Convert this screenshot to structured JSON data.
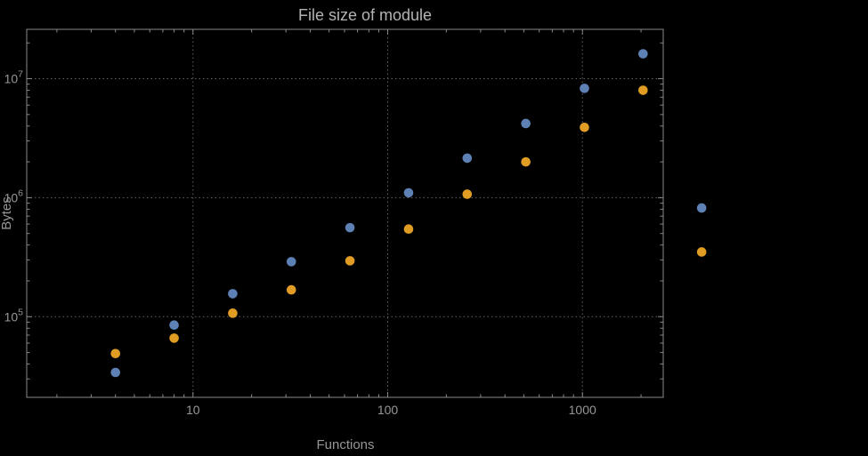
{
  "chart_data": {
    "type": "scatter",
    "title": "File size of module",
    "xlabel": "Functions",
    "ylabel": "Bytes",
    "x_scale": "log",
    "y_scale": "log",
    "grid": true,
    "legend": "none",
    "xlim": [
      1.4,
      2600
    ],
    "ylim": [
      21000,
      26000000
    ],
    "x_ticks": [
      10,
      100,
      1000
    ],
    "x_tick_labels": [
      "10",
      "100",
      "1000"
    ],
    "y_ticks": [
      100000,
      1000000,
      10000000
    ],
    "y_tick_base": "10",
    "y_tick_exponents": [
      "5",
      "6",
      "7"
    ],
    "colors": {
      "series_blue": "#5e81b5",
      "series_orange": "#e19c24",
      "frame": "#8a8a8a",
      "grid": "#636363",
      "text": "#969696",
      "title": "#b3b3b3",
      "background": "#000000"
    },
    "series": [
      {
        "name": "blue-series",
        "color": "#5e81b5",
        "points": [
          [
            4,
            34000
          ],
          [
            8,
            85000
          ],
          [
            16,
            156000
          ],
          [
            32,
            290000
          ],
          [
            64,
            560000
          ],
          [
            128,
            1100000
          ],
          [
            256,
            2150000
          ],
          [
            512,
            4200000
          ],
          [
            1024,
            8300000
          ],
          [
            2048,
            16200000
          ],
          [
            4096,
            820000
          ]
        ]
      },
      {
        "name": "orange-series",
        "color": "#e19c24",
        "points": [
          [
            4,
            49000
          ],
          [
            8,
            66000
          ],
          [
            16,
            107000
          ],
          [
            32,
            168000
          ],
          [
            64,
            295000
          ],
          [
            128,
            545000
          ],
          [
            256,
            1070000
          ],
          [
            512,
            2000000
          ],
          [
            1024,
            3900000
          ],
          [
            2048,
            8000000
          ],
          [
            4096,
            350000
          ]
        ]
      }
    ]
  }
}
